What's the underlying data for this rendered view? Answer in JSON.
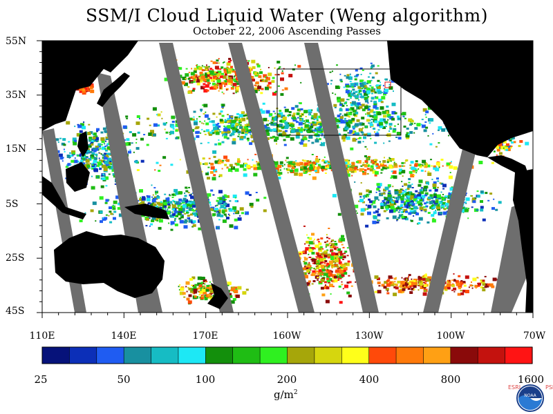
{
  "title": "SSM/I Cloud Liquid Water (Weng algorithm)",
  "subtitle": "October 22, 2006  Ascending Passes",
  "map": {
    "lat_labels": [
      "55N",
      "35N",
      "15N",
      "5S",
      "25S",
      "45S"
    ],
    "lon_labels": [
      "110E",
      "140E",
      "170E",
      "160W",
      "130W",
      "100W",
      "70W"
    ],
    "ocean_color": "#ffffff",
    "land_color": "#000000",
    "no_data_color": "#6e6e6e"
  },
  "colorbar": {
    "ticks": [
      "25",
      "50",
      "100",
      "200",
      "400",
      "800",
      "1600"
    ],
    "units_base": "g/m",
    "units_exp": "2",
    "colors": [
      "#06127a",
      "#0c2fb8",
      "#1f5cf2",
      "#1890a0",
      "#16bcc4",
      "#1de8f5",
      "#138f0c",
      "#1fbd14",
      "#2ff020",
      "#a6a60a",
      "#d6d60e",
      "#ffff1a",
      "#ff4a0a",
      "#ff7a0a",
      "#ffa014",
      "#8a0a0a",
      "#c4120e",
      "#ff1414"
    ]
  },
  "logo": {
    "left_text": "ESRL",
    "right_text": "PSD",
    "center_text": "NOAA"
  }
}
